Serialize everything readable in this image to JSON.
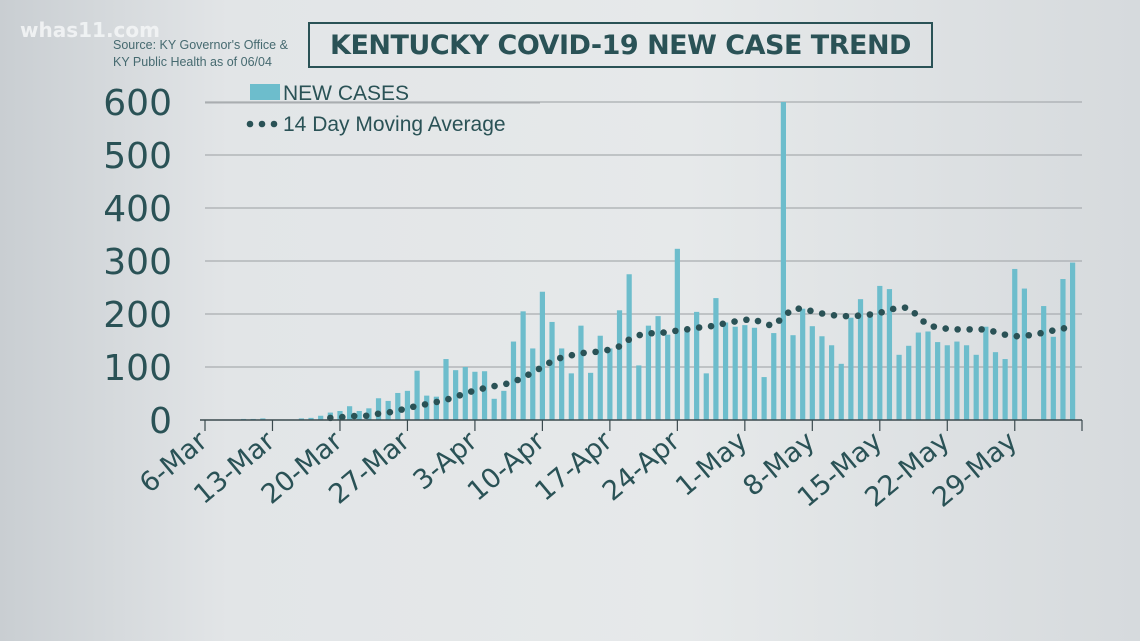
{
  "header": {
    "logo": "whas11.com",
    "source_line1": "Source: KY Governor's Office &",
    "source_line2": "KY Public Health as of 06/04",
    "title": "KENTUCKY COVID-19 NEW CASE TREND"
  },
  "colors": {
    "bars": "#6dbdcc",
    "average": "#2a5256",
    "text": "#2a5256",
    "grid": "#a9adb0"
  },
  "chart_data": {
    "type": "bar",
    "title": "KENTUCKY COVID-19 NEW CASE TREND",
    "xlabel": "",
    "ylabel": "",
    "ylim": [
      0,
      600
    ],
    "yticks": [
      "0",
      "100",
      "200",
      "300",
      "400",
      "500",
      "600"
    ],
    "grid": true,
    "legend_placement": "top-left",
    "legend": [
      "NEW CASES",
      "14 Day Moving Average"
    ],
    "x_start": "6-Mar",
    "x_end": "4-Jun",
    "xtick_labels": [
      "6-Mar",
      "13-Mar",
      "20-Mar",
      "27-Mar",
      "3-Apr",
      "10-Apr",
      "17-Apr",
      "24-Apr",
      "1-May",
      "8-May",
      "15-May",
      "22-May",
      "29-May"
    ],
    "xtick_every_days": 7,
    "series": [
      {
        "name": "NEW CASES",
        "type": "bar",
        "values": [
          1,
          0,
          1,
          1,
          2,
          2,
          3,
          1,
          1,
          1,
          3,
          4,
          8,
          14,
          17,
          26,
          17,
          22,
          41,
          36,
          51,
          55,
          93,
          46,
          44,
          115,
          94,
          100,
          91,
          92,
          40,
          55,
          148,
          205,
          135,
          242,
          185,
          135,
          88,
          178,
          89,
          159,
          135,
          207,
          275,
          103,
          178,
          196,
          161,
          323,
          170,
          204,
          88,
          230,
          184,
          176,
          179,
          174,
          81,
          164,
          600,
          160,
          210,
          177,
          158,
          141,
          106,
          193,
          228,
          204,
          253,
          247,
          123,
          140,
          165,
          167,
          147,
          141,
          148,
          141,
          123,
          176,
          128,
          115,
          285,
          248,
          0,
          215,
          157,
          266,
          297
        ]
      },
      {
        "name": "14 Day Moving Average",
        "type": "line",
        "style": "dotted",
        "values": [
          null,
          null,
          null,
          null,
          null,
          null,
          null,
          null,
          null,
          null,
          null,
          null,
          null,
          4,
          5,
          7,
          8,
          8,
          12,
          14,
          18,
          22,
          27,
          30,
          34,
          38,
          44,
          50,
          56,
          60,
          64,
          67,
          72,
          80,
          90,
          100,
          111,
          118,
          122,
          126,
          128,
          129,
          133,
          139,
          152,
          160,
          163,
          165,
          165,
          169,
          171,
          174,
          176,
          178,
          183,
          186,
          189,
          190,
          181,
          178,
          195,
          210,
          210,
          205,
          201,
          198,
          196,
          196,
          197,
          199,
          202,
          208,
          212,
          212,
          195,
          178,
          175,
          172,
          171,
          171,
          171,
          171,
          166,
          161,
          158,
          159,
          161,
          165,
          169,
          172,
          182
        ]
      }
    ]
  }
}
